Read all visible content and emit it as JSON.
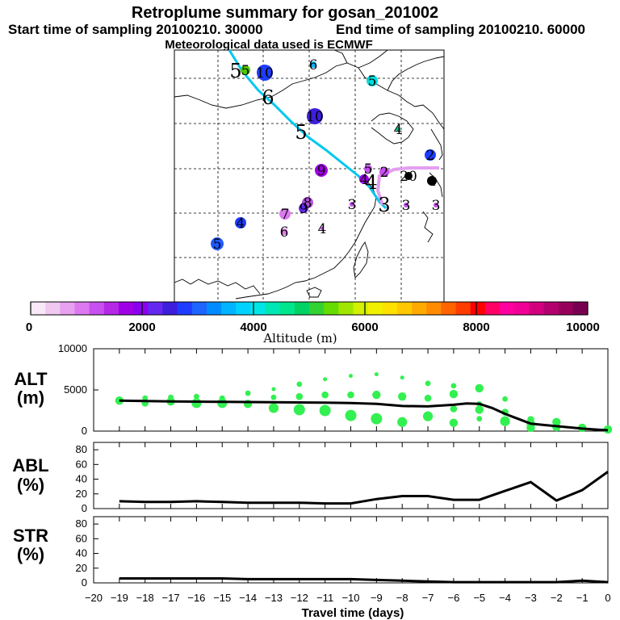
{
  "header": {
    "title": "Retroplume summary for gosan_201002",
    "start_label": "Start time of sampling 20100210. 30000",
    "end_label": "End time of sampling 20100210. 60000",
    "met_label": "Meteorological data used is ECMWF"
  },
  "map": {
    "trajectory_color": "#00c8f0",
    "day_markers": [
      {
        "label": "5",
        "color": "#000000"
      },
      {
        "label": "6",
        "color": "#000000"
      },
      {
        "label": "5",
        "color": "#000000"
      },
      {
        "label": "4",
        "color": "#000000"
      },
      {
        "label": "3",
        "color": "#000000"
      }
    ],
    "clusters": [
      {
        "label": "10",
        "color": "#1e3cff"
      },
      {
        "label": "5",
        "color": "#50c800"
      },
      {
        "label": "6",
        "color": "#00b4ff"
      },
      {
        "label": "5",
        "color": "#00dcdc"
      },
      {
        "label": "10",
        "color": "#3c1edc"
      },
      {
        "label": "4",
        "color": "#00c87a"
      },
      {
        "label": "2",
        "color": "#1e3cff"
      },
      {
        "label": "9",
        "color": "#a000e6"
      },
      {
        "label": "5",
        "color": "#c850f0"
      },
      {
        "label": "2",
        "color": "#c850f0"
      },
      {
        "label": "4",
        "color": "#a000e6"
      },
      {
        "label": "20",
        "color": "#000000"
      },
      {
        "label": "4",
        "color": "#000000"
      },
      {
        "label": "3",
        "color": "#c850f0"
      },
      {
        "label": "3",
        "color": "#c850f0"
      },
      {
        "label": "3",
        "color": "#c850f0"
      },
      {
        "label": "8",
        "color": "#b450dc"
      },
      {
        "label": "9",
        "color": "#6428f0"
      },
      {
        "label": "7",
        "color": "#dc78f0"
      },
      {
        "label": "6",
        "color": "#e678f0"
      },
      {
        "label": "4",
        "color": "#1e3cff"
      },
      {
        "label": "4",
        "color": "#c850f0"
      },
      {
        "label": "5",
        "color": "#1e5aff"
      }
    ]
  },
  "colorbar": {
    "label": "Altitude (m)",
    "ticks": [
      "0",
      "2000",
      "4000",
      "6000",
      "8000",
      "10000"
    ],
    "colors": [
      "#f8e8f8",
      "#f0c8f0",
      "#e8a0f0",
      "#dc78f0",
      "#c850f0",
      "#b428e6",
      "#a000e6",
      "#8c00f0",
      "#6428f0",
      "#3c1edc",
      "#1e3cff",
      "#1e64ff",
      "#008cff",
      "#00b4ff",
      "#00d2ff",
      "#00e6e6",
      "#00e6b4",
      "#00e68c",
      "#00d264",
      "#32d232",
      "#64dc00",
      "#a0e600",
      "#d2f000",
      "#f0f000",
      "#ffe100",
      "#ffc800",
      "#ffaa00",
      "#ff8c00",
      "#ff6400",
      "#ff3c00",
      "#ff0000",
      "#ff0064",
      "#ff00a0",
      "#f00096",
      "#d2007d",
      "#b4006e",
      "#96005a",
      "#780050"
    ]
  },
  "chart_data": [
    {
      "type": "scatter",
      "panel": "ALT",
      "ylabel_line1": "ALT",
      "ylabel_line2": "(m)",
      "xlabel": "Travel time (days)",
      "ylim": [
        0,
        10000
      ],
      "yticks": [
        0,
        5000,
        10000
      ],
      "xlim": [
        -20,
        0
      ],
      "xtick_labels": [
        "−20",
        "−19",
        "−18",
        "−17",
        "−16",
        "−15",
        "−14",
        "−13",
        "−12",
        "−11",
        "−10",
        "−9",
        "−8",
        "−7",
        "−6",
        "−5",
        "−4",
        "−3",
        "−2",
        "−1",
        "0"
      ],
      "point_color": "#32f050",
      "line_color": "#000000",
      "mean_line": {
        "x": [
          -19,
          -18,
          -17,
          -16,
          -15,
          -14,
          -13,
          -12,
          -11,
          -10,
          -9,
          -8,
          -7,
          -6,
          -5.5,
          -5,
          -4.5,
          -4,
          -3.5,
          -3,
          -2.5,
          -2,
          -1.5,
          -1,
          -0.5,
          0
        ],
        "y": [
          3700,
          3650,
          3600,
          3580,
          3550,
          3530,
          3500,
          3480,
          3450,
          3400,
          3300,
          3050,
          3000,
          3200,
          3350,
          3300,
          2800,
          2100,
          1500,
          900,
          750,
          600,
          450,
          300,
          200,
          100
        ]
      },
      "points": [
        {
          "x": -19,
          "y": 3700,
          "size": 4
        },
        {
          "x": -18,
          "y": 4000,
          "size": 2
        },
        {
          "x": -18,
          "y": 3400,
          "size": 3
        },
        {
          "x": -17,
          "y": 4100,
          "size": 2
        },
        {
          "x": -17,
          "y": 3600,
          "size": 4
        },
        {
          "x": -16,
          "y": 4200,
          "size": 2
        },
        {
          "x": -16,
          "y": 3400,
          "size": 5
        },
        {
          "x": -15,
          "y": 4000,
          "size": 2
        },
        {
          "x": -15,
          "y": 3400,
          "size": 5
        },
        {
          "x": -14,
          "y": 4600,
          "size": 2
        },
        {
          "x": -14,
          "y": 3300,
          "size": 4
        },
        {
          "x": -13,
          "y": 5100,
          "size": 1
        },
        {
          "x": -13,
          "y": 4100,
          "size": 2
        },
        {
          "x": -13,
          "y": 2800,
          "size": 5
        },
        {
          "x": -12,
          "y": 5700,
          "size": 2
        },
        {
          "x": -12,
          "y": 4200,
          "size": 3
        },
        {
          "x": -12,
          "y": 2600,
          "size": 6
        },
        {
          "x": -11,
          "y": 6300,
          "size": 1
        },
        {
          "x": -11,
          "y": 4400,
          "size": 3
        },
        {
          "x": -11,
          "y": 2500,
          "size": 6
        },
        {
          "x": -10,
          "y": 6700,
          "size": 1
        },
        {
          "x": -10,
          "y": 4400,
          "size": 3
        },
        {
          "x": -10,
          "y": 1900,
          "size": 6
        },
        {
          "x": -9,
          "y": 6900,
          "size": 1
        },
        {
          "x": -9,
          "y": 4400,
          "size": 4
        },
        {
          "x": -9,
          "y": 1500,
          "size": 6
        },
        {
          "x": -8,
          "y": 6500,
          "size": 1
        },
        {
          "x": -8,
          "y": 4200,
          "size": 4
        },
        {
          "x": -8,
          "y": 1100,
          "size": 5
        },
        {
          "x": -7,
          "y": 5800,
          "size": 2
        },
        {
          "x": -7,
          "y": 4000,
          "size": 3
        },
        {
          "x": -7,
          "y": 1800,
          "size": 5
        },
        {
          "x": -6,
          "y": 5500,
          "size": 2
        },
        {
          "x": -6,
          "y": 4500,
          "size": 4
        },
        {
          "x": -6,
          "y": 2700,
          "size": 3
        },
        {
          "x": -6,
          "y": 1000,
          "size": 4
        },
        {
          "x": -5,
          "y": 5200,
          "size": 4
        },
        {
          "x": -5,
          "y": 3300,
          "size": 2
        },
        {
          "x": -5,
          "y": 2600,
          "size": 4
        },
        {
          "x": -5,
          "y": 1500,
          "size": 2
        },
        {
          "x": -4,
          "y": 3900,
          "size": 2
        },
        {
          "x": -4,
          "y": 2300,
          "size": 3
        },
        {
          "x": -4,
          "y": 1200,
          "size": 5
        },
        {
          "x": -3,
          "y": 1400,
          "size": 3
        },
        {
          "x": -3,
          "y": 900,
          "size": 4
        },
        {
          "x": -3,
          "y": 400,
          "size": 4
        },
        {
          "x": -2,
          "y": 1100,
          "size": 4
        },
        {
          "x": -2,
          "y": 500,
          "size": 4
        },
        {
          "x": -1,
          "y": 400,
          "size": 4
        },
        {
          "x": 0,
          "y": 200,
          "size": 4
        }
      ]
    },
    {
      "type": "line",
      "panel": "ABL",
      "ylabel_line1": "ABL",
      "ylabel_line2": "(%)",
      "ylim": [
        0,
        90
      ],
      "yticks": [
        0,
        20,
        40,
        60,
        80
      ],
      "xlim": [
        -20,
        0
      ],
      "x": [
        -19,
        -18,
        -17,
        -16,
        -15,
        -14,
        -13,
        -12,
        -11,
        -10,
        -9,
        -8,
        -7,
        -6,
        -5,
        -4,
        -3,
        -2,
        -1,
        0
      ],
      "y": [
        10,
        9,
        9,
        10,
        9,
        8,
        8,
        8,
        7,
        7,
        13,
        17,
        17,
        12,
        12,
        24,
        36,
        11,
        25,
        50
      ]
    },
    {
      "type": "line",
      "panel": "STR",
      "ylabel_line1": "STR",
      "ylabel_line2": "(%)",
      "ylim": [
        0,
        90
      ],
      "yticks": [
        0,
        20,
        40,
        60,
        80
      ],
      "xlim": [
        -20,
        0
      ],
      "x": [
        -19,
        -18,
        -17,
        -16,
        -15,
        -14,
        -13,
        -12,
        -11,
        -10,
        -9,
        -8,
        -7,
        -6,
        -5,
        -4,
        -3,
        -2,
        -1,
        0
      ],
      "y": [
        6,
        6,
        6,
        6,
        6,
        5,
        5,
        5,
        5,
        5,
        4,
        3,
        2,
        1,
        1,
        1,
        1,
        1,
        3,
        1
      ]
    }
  ]
}
